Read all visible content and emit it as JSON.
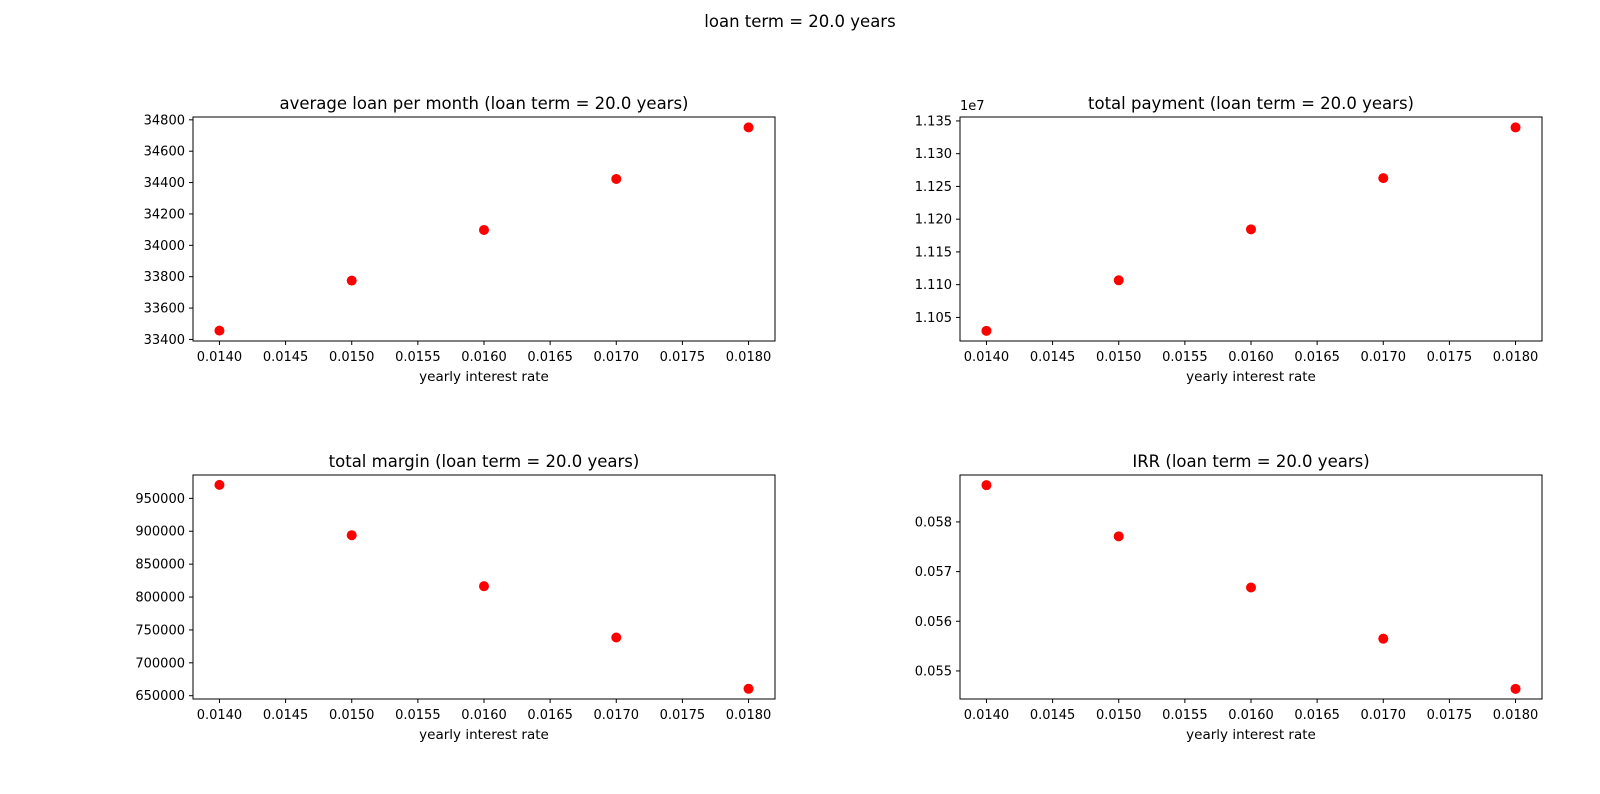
{
  "suptitle": "loan term = 20.0 years",
  "colors": {
    "marker": "#ff0000",
    "axes": "#000000"
  },
  "chart_data": [
    {
      "type": "scatter",
      "title": "average loan per month (loan term = 20.0 years)",
      "xlabel": "yearly interest rate",
      "ylabel": "",
      "x": [
        0.014,
        0.015,
        0.016,
        0.017,
        0.018
      ],
      "y": [
        33456,
        33775,
        34098,
        34423,
        34752
      ],
      "xlim": [
        0.0138,
        0.0182
      ],
      "ylim": [
        33390,
        34818
      ],
      "xticks": [
        "0.0140",
        "0.0145",
        "0.0150",
        "0.0155",
        "0.0160",
        "0.0165",
        "0.0170",
        "0.0175",
        "0.0180"
      ],
      "yticks": [
        "33400",
        "33600",
        "33800",
        "34000",
        "34200",
        "34400",
        "34600",
        "34800"
      ],
      "offset_label": "",
      "grid": false
    },
    {
      "type": "scatter",
      "title": "total payment (loan term = 20.0 years)",
      "xlabel": "yearly interest rate",
      "ylabel": "",
      "x": [
        0.014,
        0.015,
        0.016,
        0.017,
        0.018
      ],
      "y": [
        1.10295,
        1.11067,
        1.11845,
        1.12627,
        1.13401
      ],
      "xlim": [
        0.0138,
        0.0182
      ],
      "ylim": [
        1.1014,
        1.1356
      ],
      "xticks": [
        "0.0140",
        "0.0145",
        "0.0150",
        "0.0155",
        "0.0160",
        "0.0165",
        "0.0170",
        "0.0175",
        "0.0180"
      ],
      "yticks": [
        "1.105",
        "1.110",
        "1.115",
        "1.120",
        "1.125",
        "1.130",
        "1.135"
      ],
      "offset_label": "1e7",
      "grid": false
    },
    {
      "type": "scatter",
      "title": "total margin (loan term = 20.0 years)",
      "xlabel": "yearly interest rate",
      "ylabel": "",
      "x": [
        0.014,
        0.015,
        0.016,
        0.017,
        0.018
      ],
      "y": [
        970500,
        894000,
        816500,
        738500,
        660500
      ],
      "xlim": [
        0.0138,
        0.0182
      ],
      "ylim": [
        645000,
        985500
      ],
      "xticks": [
        "0.0140",
        "0.0145",
        "0.0150",
        "0.0155",
        "0.0160",
        "0.0165",
        "0.0170",
        "0.0175",
        "0.0180"
      ],
      "yticks": [
        "650000",
        "700000",
        "750000",
        "800000",
        "850000",
        "900000",
        "950000"
      ],
      "offset_label": "",
      "grid": false
    },
    {
      "type": "scatter",
      "title": "IRR (loan term = 20.0 years)",
      "xlabel": "yearly interest rate",
      "ylabel": "",
      "x": [
        0.014,
        0.015,
        0.016,
        0.017,
        0.018
      ],
      "y": [
        0.05874,
        0.05771,
        0.05668,
        0.05565,
        0.05464
      ],
      "xlim": [
        0.0138,
        0.0182
      ],
      "ylim": [
        0.054435,
        0.058945
      ],
      "xticks": [
        "0.0140",
        "0.0145",
        "0.0150",
        "0.0155",
        "0.0160",
        "0.0165",
        "0.0170",
        "0.0175",
        "0.0180"
      ],
      "yticks": [
        "0.055",
        "0.056",
        "0.057",
        "0.058"
      ],
      "offset_label": "",
      "grid": false
    }
  ]
}
